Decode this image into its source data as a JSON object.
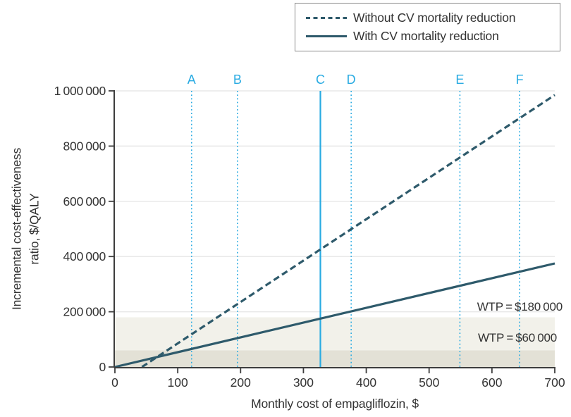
{
  "chart_data": {
    "type": "line",
    "title": "",
    "xlabel": "Monthly cost of empagliflozin, $",
    "ylabel_lines": [
      "Incremental cost-effectiveness",
      "ratio, $/QALY"
    ],
    "xlim": [
      0,
      700
    ],
    "ylim": [
      0,
      1000000
    ],
    "grid": "horizontal",
    "legend_position": "top-right",
    "x_ticks": [
      {
        "v": 0,
        "label": "0"
      },
      {
        "v": 100,
        "label": "100"
      },
      {
        "v": 200,
        "label": "200"
      },
      {
        "v": 300,
        "label": "300"
      },
      {
        "v": 400,
        "label": "400"
      },
      {
        "v": 500,
        "label": "500"
      },
      {
        "v": 600,
        "label": "600"
      },
      {
        "v": 700,
        "label": "700"
      }
    ],
    "y_ticks": [
      {
        "v": 0,
        "label": "0"
      },
      {
        "v": 200000,
        "label": "200 000"
      },
      {
        "v": 400000,
        "label": "400 000"
      },
      {
        "v": 600000,
        "label": "600 000"
      },
      {
        "v": 800000,
        "label": "800 000"
      },
      {
        "v": 1000000,
        "label": "1 000 000"
      }
    ],
    "series": [
      {
        "name": "Without CV mortality reduction",
        "style": "dashed",
        "points": [
          [
            43,
            0
          ],
          [
            700,
            985000
          ]
        ]
      },
      {
        "name": "With CV mortality reduction",
        "style": "solid",
        "points": [
          [
            0,
            0
          ],
          [
            700,
            375000
          ]
        ]
      }
    ],
    "price_markers": [
      {
        "label": "A",
        "x": 122,
        "line": "dotted"
      },
      {
        "label": "B",
        "x": 195,
        "line": "dotted"
      },
      {
        "label": "C",
        "x": 327,
        "line": "solid"
      },
      {
        "label": "D",
        "x": 376,
        "line": "dotted"
      },
      {
        "label": "E",
        "x": 549,
        "line": "dotted"
      },
      {
        "label": "F",
        "x": 644,
        "line": "dotted"
      }
    ],
    "wtp_bands": [
      {
        "label": "WTP = $60 000",
        "from": 0,
        "to": 60000,
        "color": "#e3e1d6"
      },
      {
        "label": "WTP = $180 000",
        "from": 60000,
        "to": 180000,
        "color": "#f2f1ea"
      }
    ],
    "colors": {
      "series": "#2e5a6b",
      "marker": "#29abe2",
      "grid": "#e8e8e8",
      "axis": "#3d3d3d",
      "text": "#333333",
      "legend_border": "#8a8a8a",
      "background": "#ffffff"
    }
  }
}
